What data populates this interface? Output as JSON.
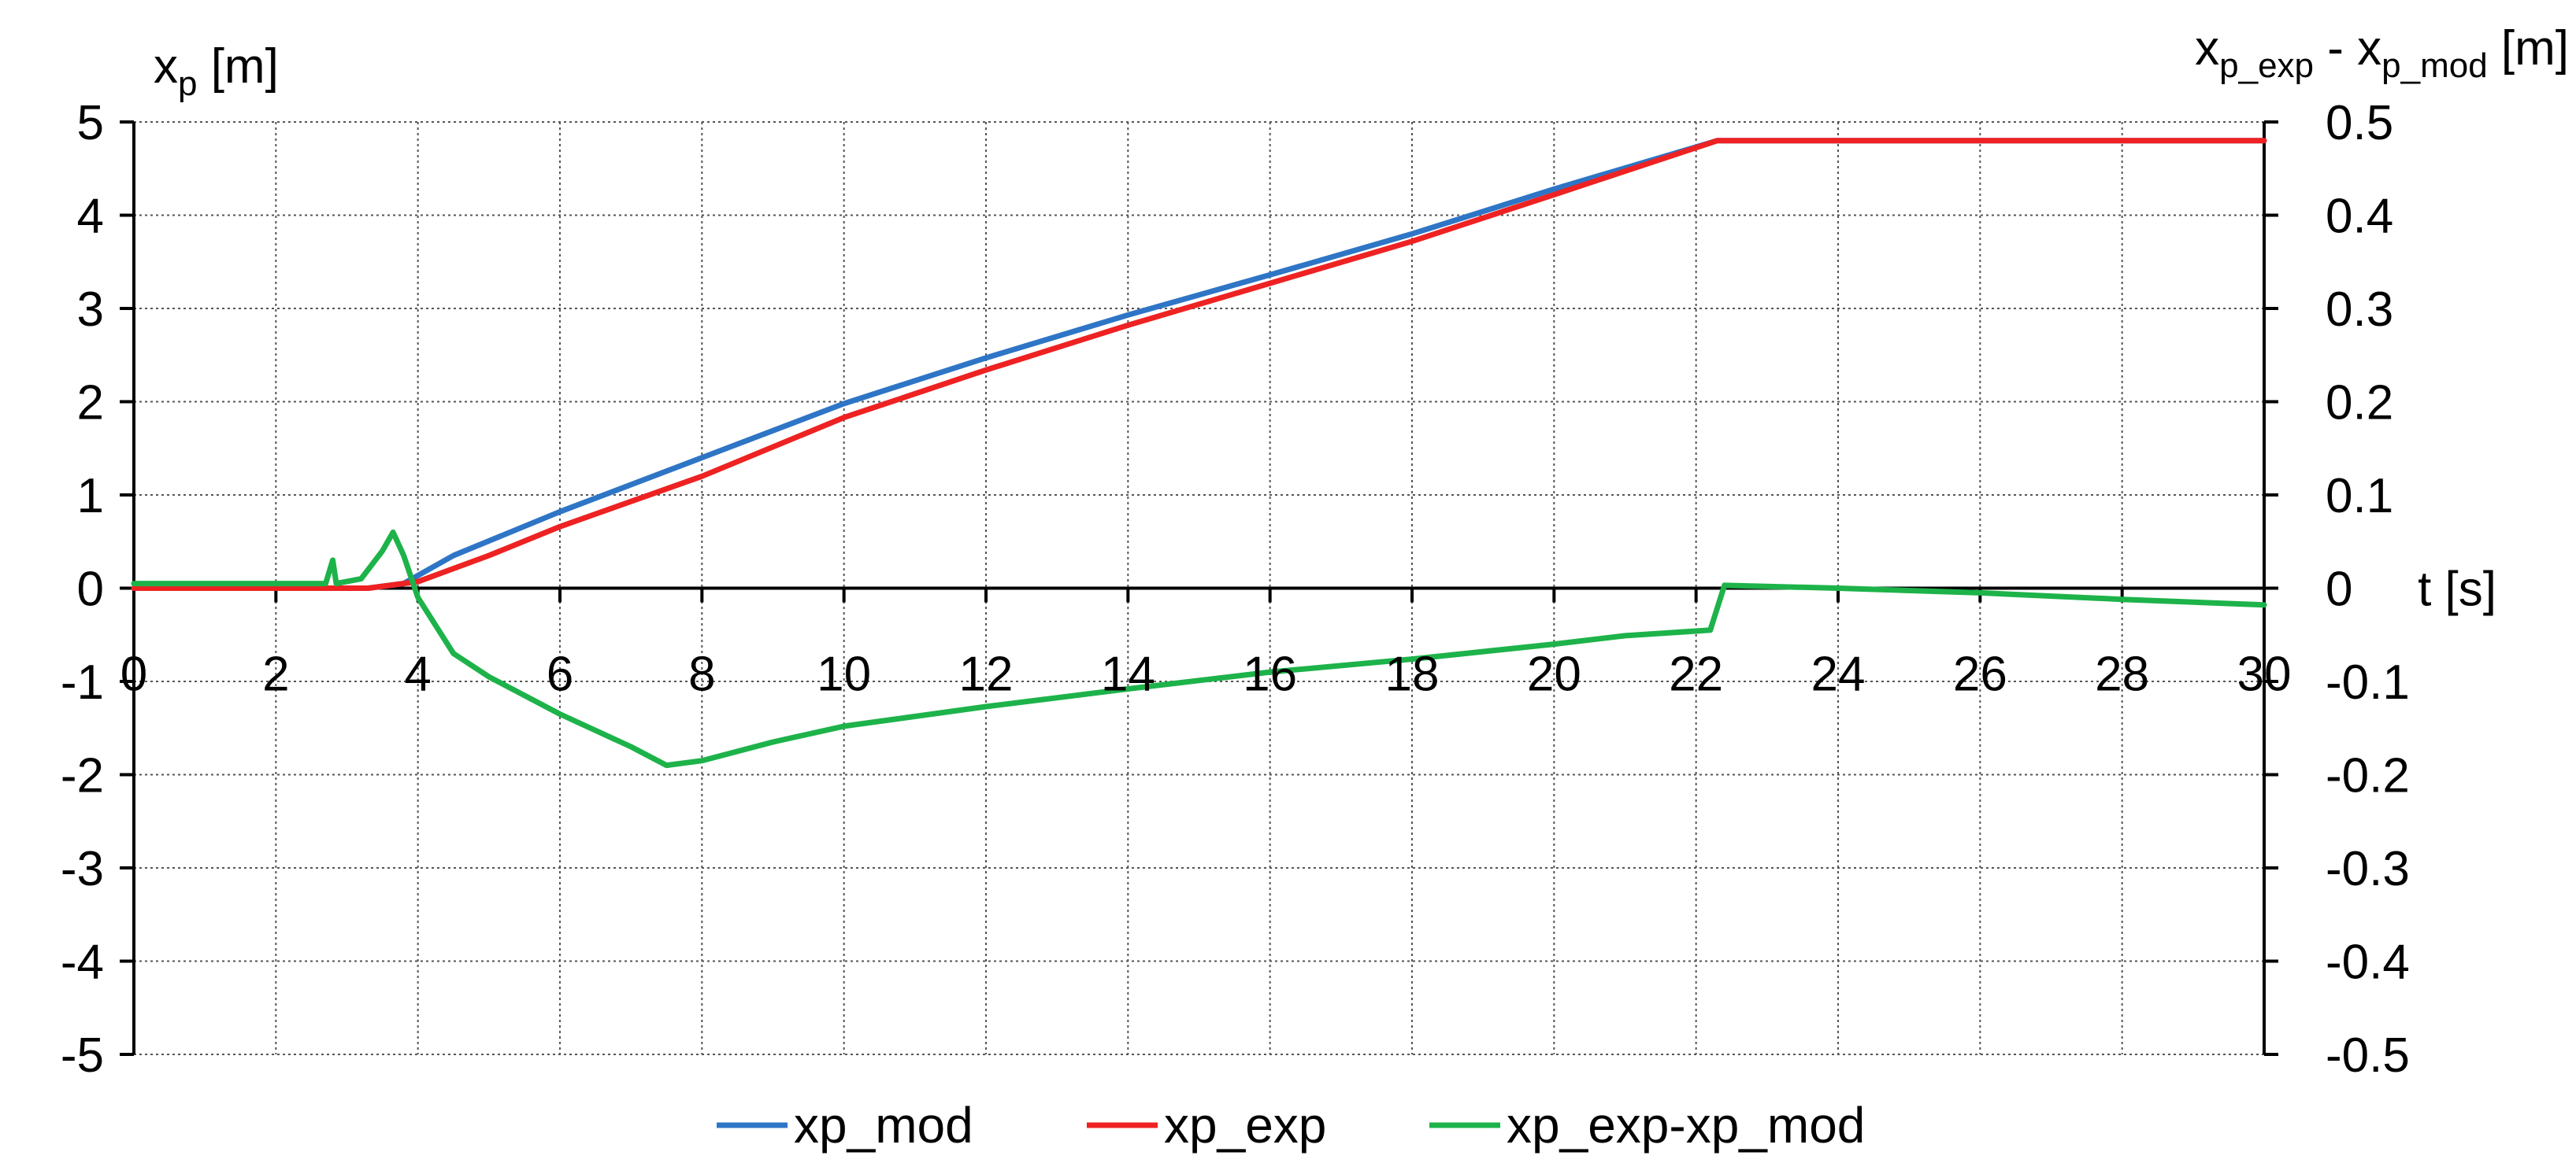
{
  "chart_data": {
    "type": "line",
    "x_axis": {
      "label": "t [s]",
      "range": [
        0,
        30
      ],
      "ticks": [
        "0",
        "2",
        "4",
        "6",
        "8",
        "10",
        "12",
        "14",
        "16",
        "18",
        "20",
        "22",
        "24",
        "26",
        "28",
        "30"
      ]
    },
    "y_left_axis": {
      "label_main": "x",
      "label_sub": "p",
      "label_unit": " [m]",
      "range": [
        -5,
        5
      ],
      "ticks": [
        "5",
        "4",
        "3",
        "2",
        "1",
        "0",
        "-1",
        "-2",
        "-3",
        "-4",
        "-5"
      ]
    },
    "y_right_axis": {
      "label_parts": [
        {
          "text": "x",
          "sub": false
        },
        {
          "text": "p_exp",
          "sub": true
        },
        {
          "text": " - x",
          "sub": false
        },
        {
          "text": "p_mod",
          "sub": true
        },
        {
          "text": " [m]",
          "sub": false
        }
      ],
      "range": [
        -0.5,
        0.5
      ],
      "ticks": [
        "0.5",
        "0.4",
        "0.3",
        "0.2",
        "0.1",
        "0",
        "-0.1",
        "-0.2",
        "-0.3",
        "-0.4",
        "-0.5"
      ]
    },
    "grid": true,
    "legend_position": "bottom",
    "series": [
      {
        "name": "xp_mod",
        "axis": "left",
        "color": "#2e75c6",
        "points": [
          [
            0,
            0
          ],
          [
            3.3,
            0
          ],
          [
            3.8,
            0.05
          ],
          [
            4.5,
            0.35
          ],
          [
            6,
            0.82
          ],
          [
            8,
            1.4
          ],
          [
            10,
            1.98
          ],
          [
            12,
            2.47
          ],
          [
            14,
            2.93
          ],
          [
            16,
            3.36
          ],
          [
            18,
            3.8
          ],
          [
            20,
            4.28
          ],
          [
            22.3,
            4.8
          ],
          [
            30,
            4.8
          ]
        ]
      },
      {
        "name": "xp_exp",
        "axis": "left",
        "color": "#ee2222",
        "points": [
          [
            0,
            0
          ],
          [
            3.3,
            0
          ],
          [
            4,
            0.07
          ],
          [
            5,
            0.35
          ],
          [
            6,
            0.66
          ],
          [
            8,
            1.2
          ],
          [
            10,
            1.83
          ],
          [
            12,
            2.34
          ],
          [
            14,
            2.82
          ],
          [
            16,
            3.27
          ],
          [
            18,
            3.72
          ],
          [
            20,
            4.22
          ],
          [
            22.3,
            4.8
          ],
          [
            30,
            4.8
          ]
        ]
      },
      {
        "name": "xp_exp-xp_mod",
        "axis": "right",
        "color": "#1db34a",
        "points": [
          [
            0,
            0.005
          ],
          [
            2.7,
            0.005
          ],
          [
            2.8,
            0.03
          ],
          [
            2.85,
            0.005
          ],
          [
            3.2,
            0.01
          ],
          [
            3.5,
            0.04
          ],
          [
            3.65,
            0.06
          ],
          [
            3.8,
            0.035
          ],
          [
            4,
            -0.01
          ],
          [
            4.5,
            -0.07
          ],
          [
            5,
            -0.095
          ],
          [
            6,
            -0.135
          ],
          [
            7,
            -0.17
          ],
          [
            7.5,
            -0.19
          ],
          [
            8,
            -0.185
          ],
          [
            9,
            -0.165
          ],
          [
            10,
            -0.148
          ],
          [
            12,
            -0.127
          ],
          [
            14,
            -0.108
          ],
          [
            16,
            -0.09
          ],
          [
            18,
            -0.076
          ],
          [
            20,
            -0.06
          ],
          [
            21,
            -0.051
          ],
          [
            22.2,
            -0.045
          ],
          [
            22.4,
            0.003
          ],
          [
            24,
            0.0
          ],
          [
            26,
            -0.005
          ],
          [
            28,
            -0.012
          ],
          [
            30,
            -0.018
          ]
        ]
      }
    ]
  }
}
